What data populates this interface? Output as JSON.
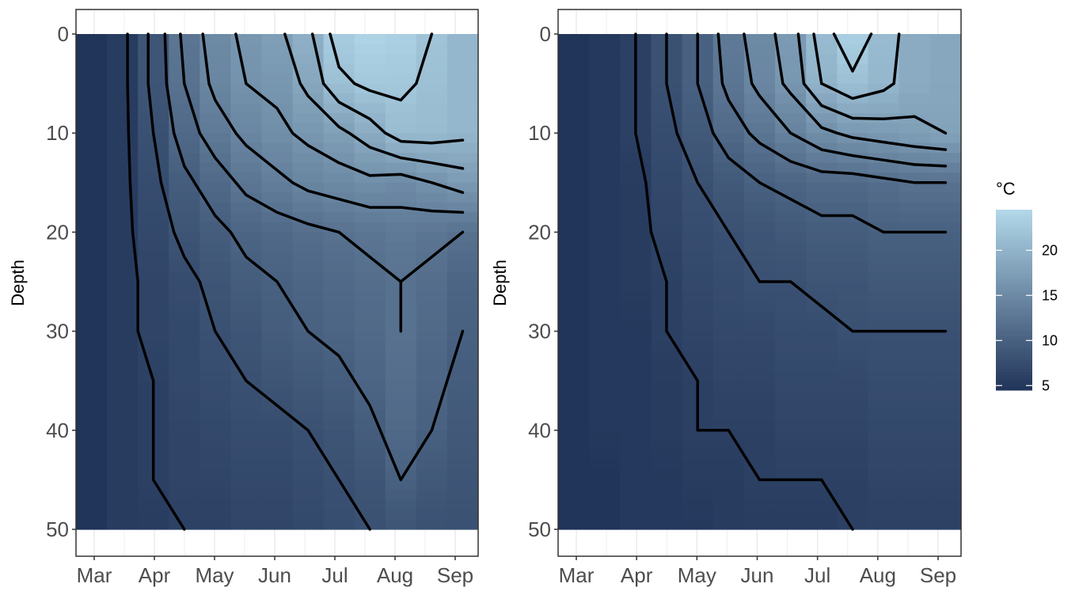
{
  "colors": {
    "low": "#213459",
    "high": "#b2d8ea",
    "contour": "#000000",
    "grid": "#ebebeb",
    "frame": "#333333",
    "background": "#ffffff"
  },
  "legend": {
    "title": "°C",
    "ticks": [
      "5",
      "10",
      "15",
      "20"
    ],
    "range": [
      4.5,
      24.5
    ]
  },
  "chart_data": [
    {
      "type": "heatmap",
      "title": "",
      "xlabel": "",
      "ylabel": "Depth",
      "ylim": [
        0,
        50
      ],
      "y_reversed": true,
      "grid": true,
      "x_ticks": [
        "Mar",
        "Apr",
        "May",
        "Jun",
        "Jul",
        "Aug",
        "Sep"
      ],
      "y_ticks": [
        "0",
        "10",
        "20",
        "30",
        "40",
        "50"
      ],
      "months": [
        "Mar",
        "Mar-Apr",
        "Apr",
        "Apr-May",
        "May",
        "May-Jun",
        "Jun",
        "Jun-Jul",
        "Jul",
        "Jul-Aug",
        "Aug",
        "Aug-Sep",
        "Sep"
      ],
      "depths": [
        0,
        5,
        10,
        15,
        20,
        25,
        30,
        35,
        40,
        45,
        50
      ],
      "temperature": [
        [
          4.5,
          5.5,
          8.5,
          12.5,
          15,
          16.5,
          17.5,
          19.5,
          23,
          24,
          23.5,
          22,
          20.5
        ],
        [
          4.5,
          5.5,
          8.5,
          12,
          14.5,
          16,
          16.5,
          18.5,
          21.5,
          22.5,
          22.5,
          21.5,
          20.5
        ],
        [
          4.5,
          5.5,
          8,
          11,
          13,
          14.5,
          15.5,
          16.5,
          17.5,
          19,
          21,
          21,
          20.5
        ],
        [
          4.5,
          5.5,
          7.5,
          9.5,
          11,
          12.5,
          13.5,
          14.5,
          15,
          15.5,
          15,
          16,
          17
        ],
        [
          4.5,
          5.5,
          7,
          8.5,
          9.5,
          10.5,
          11,
          11.5,
          12,
          12.5,
          13,
          12.5,
          12
        ],
        [
          4.5,
          5.5,
          6.5,
          7.5,
          8.5,
          9.5,
          10,
          10.5,
          11,
          11.5,
          12,
          11.5,
          10.5
        ],
        [
          4.5,
          5.5,
          6.5,
          7,
          8,
          8.5,
          9.5,
          10,
          10.5,
          11,
          12,
          11,
          10
        ],
        [
          4.5,
          5.5,
          6,
          7,
          7.5,
          8,
          8.5,
          9,
          9.5,
          10.5,
          11.5,
          10.5,
          9.5
        ],
        [
          4.5,
          5.5,
          6,
          6.5,
          7,
          7.5,
          7.5,
          8,
          8.5,
          9.5,
          11,
          10,
          9
        ],
        [
          4.5,
          5.5,
          6,
          6.5,
          6.5,
          7,
          7,
          7.5,
          8,
          8.5,
          10,
          9,
          8.5
        ],
        [
          4.5,
          5.5,
          5.5,
          6,
          6,
          6.5,
          6.5,
          7,
          7.5,
          8,
          8.5,
          8,
          8
        ]
      ]
    },
    {
      "type": "heatmap",
      "title": "",
      "xlabel": "",
      "ylabel": "Depth",
      "ylim": [
        0,
        50
      ],
      "y_reversed": true,
      "grid": true,
      "x_ticks": [
        "Mar",
        "Apr",
        "May",
        "Jun",
        "Jul",
        "Aug",
        "Sep"
      ],
      "y_ticks": [
        "0",
        "10",
        "20",
        "30",
        "40",
        "50"
      ],
      "months": [
        "Mar",
        "Mar-Apr",
        "Apr",
        "Apr-May",
        "May",
        "May-Jun",
        "Jun",
        "Jun-Jul",
        "Jul",
        "Jul-Aug",
        "Aug",
        "Aug-Sep",
        "Sep"
      ],
      "depths": [
        0,
        5,
        10,
        15,
        20,
        25,
        30,
        35,
        40,
        45,
        50
      ],
      "temperature": [
        [
          4.5,
          5,
          6,
          8,
          10,
          13,
          15,
          17,
          21,
          23.5,
          21,
          19,
          18.5
        ],
        [
          4.5,
          5,
          6,
          8,
          10,
          12.5,
          14.5,
          16.5,
          20,
          21.5,
          20.5,
          19,
          18.5
        ],
        [
          4.5,
          5,
          6,
          7.5,
          9,
          11,
          12.5,
          14,
          15.5,
          16.5,
          17,
          17.5,
          18
        ],
        [
          4.5,
          5,
          5.5,
          7,
          8,
          9,
          10,
          10.5,
          11,
          11,
          11.5,
          12,
          12
        ],
        [
          4.5,
          5,
          5.5,
          6.5,
          7.5,
          8,
          8.5,
          9,
          9.5,
          9.5,
          10,
          10,
          10
        ],
        [
          4.5,
          5,
          5.5,
          6,
          7,
          7.5,
          8,
          8,
          8.5,
          8.5,
          9,
          9,
          9
        ],
        [
          4.5,
          5,
          5,
          6,
          6.5,
          7,
          7,
          7.5,
          7.5,
          8,
          8,
          8,
          8
        ],
        [
          4.5,
          5,
          5,
          5.5,
          6,
          6.5,
          6.5,
          7,
          7,
          7,
          7.5,
          7.5,
          7.5
        ],
        [
          4.5,
          5,
          5,
          5.5,
          6,
          6,
          6,
          6.5,
          6.5,
          6.5,
          7,
          7,
          7
        ],
        [
          4.5,
          4.5,
          5,
          5,
          5.5,
          5.5,
          6,
          6,
          6,
          6,
          6.5,
          6.5,
          6.5
        ],
        [
          4.5,
          4.5,
          5,
          5,
          5,
          5.5,
          5.5,
          5.5,
          5.5,
          6,
          6,
          6,
          6
        ]
      ]
    }
  ]
}
